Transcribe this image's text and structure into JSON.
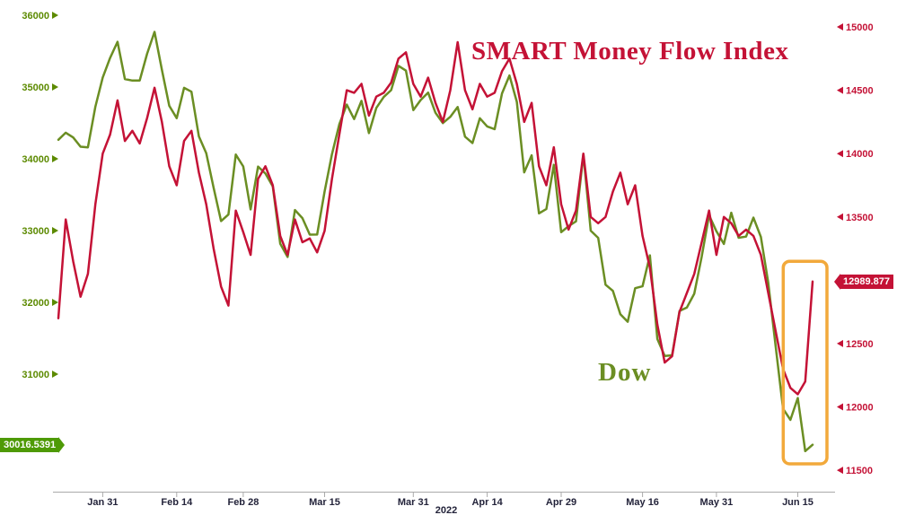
{
  "chart_data": {
    "type": "line",
    "title": "SMART Money Flow Index",
    "series_label_annotation": "Dow",
    "year_label": "2022",
    "x": [
      "Jan 21",
      "Jan 24",
      "Jan 25",
      "Jan 26",
      "Jan 27",
      "Jan 28",
      "Jan 31",
      "Feb 1",
      "Feb 2",
      "Feb 3",
      "Feb 4",
      "Feb 7",
      "Feb 8",
      "Feb 9",
      "Feb 10",
      "Feb 11",
      "Feb 14",
      "Feb 15",
      "Feb 16",
      "Feb 17",
      "Feb 18",
      "Feb 22",
      "Feb 23",
      "Feb 24",
      "Feb 25",
      "Feb 28",
      "Mar 1",
      "Mar 2",
      "Mar 3",
      "Mar 4",
      "Mar 7",
      "Mar 8",
      "Mar 9",
      "Mar 10",
      "Mar 11",
      "Mar 14",
      "Mar 15",
      "Mar 16",
      "Mar 17",
      "Mar 18",
      "Mar 21",
      "Mar 22",
      "Mar 23",
      "Mar 24",
      "Mar 25",
      "Mar 28",
      "Mar 29",
      "Mar 30",
      "Mar 31",
      "Apr 1",
      "Apr 4",
      "Apr 5",
      "Apr 6",
      "Apr 7",
      "Apr 8",
      "Apr 11",
      "Apr 12",
      "Apr 13",
      "Apr 14",
      "Apr 18",
      "Apr 19",
      "Apr 20",
      "Apr 21",
      "Apr 22",
      "Apr 25",
      "Apr 26",
      "Apr 27",
      "Apr 28",
      "Apr 29",
      "May 2",
      "May 3",
      "May 4",
      "May 5",
      "May 6",
      "May 9",
      "May 10",
      "May 11",
      "May 12",
      "May 13",
      "May 16",
      "May 17",
      "May 18",
      "May 19",
      "May 20",
      "May 23",
      "May 24",
      "May 25",
      "May 26",
      "May 27",
      "May 31",
      "Jun 1",
      "Jun 2",
      "Jun 3",
      "Jun 6",
      "Jun 7",
      "Jun 8",
      "Jun 9",
      "Jun 10",
      "Jun 13",
      "Jun 14",
      "Jun 15",
      "Jun 16",
      "Jun 17"
    ],
    "x_tick_labels": [
      {
        "index": 6,
        "label": "Jan 31"
      },
      {
        "index": 16,
        "label": "Feb 14"
      },
      {
        "index": 25,
        "label": "Feb 28"
      },
      {
        "index": 36,
        "label": "Mar 15"
      },
      {
        "index": 48,
        "label": "Mar 31"
      },
      {
        "index": 58,
        "label": "Apr 14"
      },
      {
        "index": 68,
        "label": "Apr 29"
      },
      {
        "index": 79,
        "label": "May 16"
      },
      {
        "index": 89,
        "label": "May 31"
      },
      {
        "index": 100,
        "label": "Jun 15"
      }
    ],
    "left_axis": {
      "color": "#5c8a00",
      "min": 29400,
      "max": 36112,
      "ticks": [
        31000,
        32000,
        33000,
        34000,
        35000,
        36000
      ]
    },
    "right_axis": {
      "color": "#c41236",
      "min": 11352,
      "max": 15156,
      "ticks": [
        11500,
        12000,
        12500,
        13000,
        13500,
        14000,
        14500,
        15000
      ]
    },
    "series": [
      {
        "name": "Dow",
        "axis": "left",
        "color": "#6b8e23",
        "values": [
          34265,
          34364,
          34297,
          34168,
          34160,
          34725,
          35132,
          35405,
          35629,
          35111,
          35090,
          35091,
          35462,
          35768,
          35241,
          34738,
          34566,
          34988,
          34934,
          34312,
          34079,
          33597,
          33132,
          33224,
          34059,
          33893,
          33295,
          33891,
          33795,
          33615,
          32817,
          32632,
          33286,
          33174,
          32944,
          32945,
          33544,
          34063,
          34481,
          34755,
          34553,
          34807,
          34358,
          34708,
          34861,
          34956,
          35294,
          35228,
          34678,
          34818,
          34922,
          34641,
          34497,
          34584,
          34721,
          34308,
          34220,
          34565,
          34451,
          34412,
          34911,
          35161,
          34793,
          33811,
          34049,
          33240,
          33301,
          33916,
          32977,
          33061,
          33129,
          34061,
          32998,
          32899,
          32246,
          32160,
          31834,
          31730,
          32197,
          32223,
          32655,
          31490,
          31253,
          31262,
          31880,
          31929,
          32120,
          32637,
          33213,
          32990,
          32813,
          33248,
          32900,
          32916,
          33180,
          32911,
          32273,
          31393,
          30517,
          30364,
          30668,
          29927,
          30016.54
        ]
      },
      {
        "name": "SMART Money Flow Index",
        "axis": "right",
        "color": "#c41236",
        "values": [
          12700,
          13480,
          13150,
          12870,
          13050,
          13600,
          14000,
          14150,
          14420,
          14100,
          14180,
          14080,
          14280,
          14520,
          14250,
          13900,
          13750,
          14100,
          14180,
          13850,
          13600,
          13250,
          12950,
          12800,
          13550,
          13380,
          13200,
          13800,
          13900,
          13750,
          13350,
          13200,
          13480,
          13300,
          13330,
          13220,
          13390,
          13800,
          14150,
          14500,
          14480,
          14550,
          14300,
          14450,
          14480,
          14560,
          14750,
          14800,
          14550,
          14450,
          14600,
          14400,
          14250,
          14500,
          14880,
          14500,
          14350,
          14550,
          14450,
          14480,
          14650,
          14750,
          14550,
          14250,
          14400,
          13900,
          13750,
          14050,
          13600,
          13400,
          13550,
          14000,
          13500,
          13450,
          13500,
          13700,
          13850,
          13600,
          13750,
          13350,
          13100,
          12650,
          12350,
          12400,
          12750,
          12900,
          13050,
          13300,
          13550,
          13200,
          13500,
          13450,
          13350,
          13400,
          13350,
          13200,
          12900,
          12600,
          12300,
          12150,
          12100,
          12200,
          12989.877
        ]
      }
    ],
    "callouts": {
      "dow_last": {
        "value": "30016.5391",
        "color": "#4e9a06"
      },
      "smart_last": {
        "value": "12989.877",
        "color": "#c41236"
      }
    },
    "highlight": {
      "from_date_index": 99,
      "to_date_index": 102,
      "top_value_right_axis": 13150,
      "bottom_value_left_axis": 29750,
      "color": "#f2a93b"
    },
    "layout_hints": {
      "grid": false,
      "legend": "inline-annotations",
      "left_axis_side_series": "Dow",
      "right_axis_side_series": "SMART Money Flow Index"
    }
  }
}
